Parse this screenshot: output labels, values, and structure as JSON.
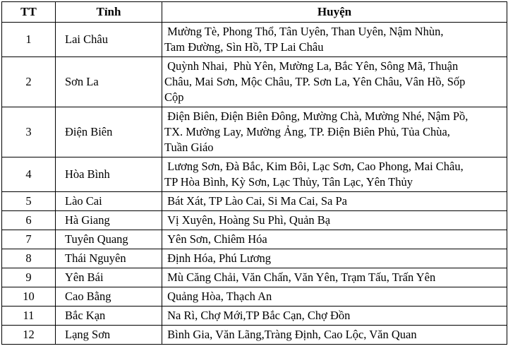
{
  "table": {
    "headers": [
      "TT",
      "Tỉnh",
      "Huyện"
    ],
    "rows": [
      {
        "tt": "1",
        "tinh": "Lai Châu",
        "huyen": " Mường Tè, Phong Thổ, Tân Uyên, Than Uyên, Nậm Nhùn,\nTam Đường, Sìn Hồ, TP Lai Châu"
      },
      {
        "tt": "2",
        "tinh": "Sơn La",
        "huyen": " Quỳnh Nhai,  Phù Yên, Mường La, Bắc Yên, Sông Mã, Thuận\nChâu, Mai Sơn, Mộc Châu, TP. Sơn La, Yên Châu, Vân Hồ, Sốp\nCộp"
      },
      {
        "tt": "3",
        "tinh": "Điện Biên",
        "huyen": " Điện Biên, Điện Biên Đông, Mường Chà, Mường Nhé, Nậm Pồ,\nTX. Mường Lay, Mường Ảng, TP. Điện Biên Phủ, Tủa Chùa,\nTuần Giáo"
      },
      {
        "tt": "4",
        "tinh": "Hòa Bình",
        "huyen": " Lương Sơn, Đà Bắc, Kim Bôi, Lạc Sơn, Cao Phong, Mai Châu,\nTP Hòa Bình, Kỳ Sơn, Lạc Thủy, Tân Lạc, Yên Thủy"
      },
      {
        "tt": "5",
        "tinh": "Lào Cai",
        "huyen": " Bát Xát, TP Lào Cai, Si Ma Cai, Sa Pa"
      },
      {
        "tt": "6",
        "tinh": "Hà Giang",
        "huyen": " Vị Xuyên, Hoàng Su Phì, Quản Bạ"
      },
      {
        "tt": "7",
        "tinh": "Tuyên Quang",
        "huyen": " Yên Sơn, Chiêm Hóa"
      },
      {
        "tt": "8",
        "tinh": "Thái Nguyên",
        "huyen": " Định Hóa, Phú Lương"
      },
      {
        "tt": "9",
        "tinh": "Yên Bái",
        "huyen": " Mù Căng Chải, Văn Chấn, Văn Yên, Trạm Tấu, Trấn Yên"
      },
      {
        "tt": "10",
        "tinh": "Cao Bằng",
        "huyen": " Quảng Hòa, Thạch An"
      },
      {
        "tt": "11",
        "tinh": "Bắc Kạn",
        "huyen": " Na Rì, Chợ Mới,TP Bắc Cạn, Chợ Đồn"
      },
      {
        "tt": "12",
        "tinh": "Lạng Sơn",
        "huyen": " Bình Gia, Văn Lãng,Tràng Định, Cao Lộc, Văn Quan"
      }
    ]
  }
}
